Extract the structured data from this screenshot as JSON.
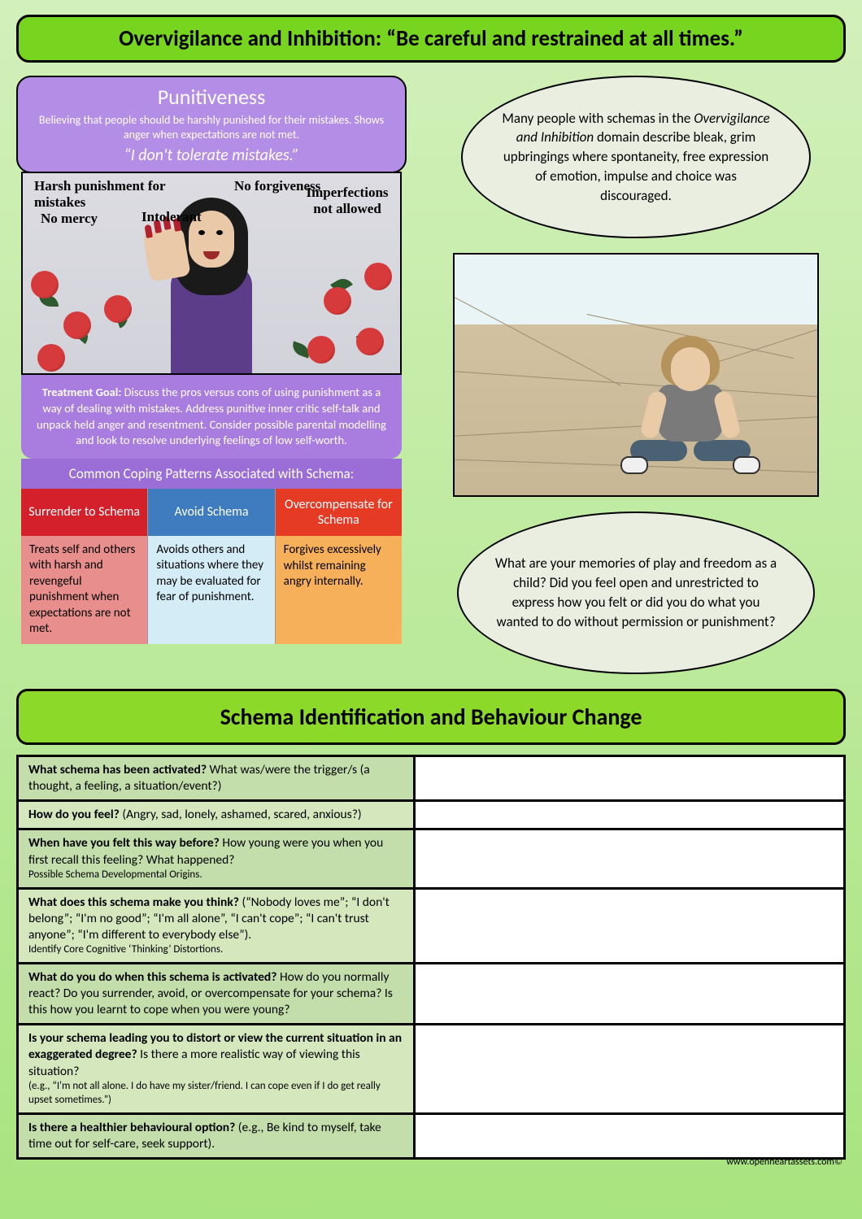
{
  "colors": {
    "title_bg": "#77d41f",
    "purple": "#b48de6",
    "purple_dark": "#a97de0",
    "coping_header_bg": "#9b6dd6",
    "surrender_h": "#d4202a",
    "surrender_b": "#e88f8d",
    "avoid_h": "#3f7bbf",
    "avoid_b": "#d4ecf6",
    "over_h": "#e53a24",
    "over_b": "#f6b05a",
    "ellipse_bg": "#e9eee1",
    "section_bg": "#8cd92a",
    "row_a": "#c3deaa",
    "row_b": "#d4e7bd"
  },
  "title": "Overvigilance and Inhibition: “Be careful and restrained at all times.”",
  "punitive": {
    "title": "Punitiveness",
    "desc": "Believing that people should be harshly punished for their mistakes. Shows anger when expectations are not met.",
    "quote": "“I don't tolerate mistakes.”"
  },
  "illus_labels": {
    "a": "Harsh punishment for mistakes",
    "b": "No forgiveness",
    "c": "Imperfections not allowed",
    "d": "No mercy",
    "e": "Intolerant"
  },
  "treatment": {
    "label": "Treatment Goal:",
    "text": " Discuss the pros versus cons of using punishment as a way of dealing with mistakes. Address punitive inner critic self-talk and unpack held anger and resentment. Consider possible parental modelling and look to resolve underlying feelings of low self-worth."
  },
  "coping": {
    "header": "Common Coping Patterns Associated with Schema:",
    "cols": [
      {
        "h": "Surrender to Schema",
        "b": "Treats self and others with harsh and revengeful punishment when expectations are not met."
      },
      {
        "h": "Avoid Schema",
        "b": "Avoids others and situations where they may be evaluated for fear of punishment."
      },
      {
        "h": "Overcompensate for Schema",
        "b": "Forgives excessively whilst remaining angry internally."
      }
    ]
  },
  "ellipse1": {
    "pre": "Many people with schemas in the ",
    "em": "Overvigilance and Inhibition",
    "post": " domain describe bleak, grim upbringings where spontaneity, free expression of emotion, impulse and choice was discouraged."
  },
  "ellipse2": "What are your memories of play and freedom as a child? Did you feel open and unrestricted to express how you felt or did you do what you wanted to do without permission or punishment?",
  "section2": "Schema Identification and Behaviour Change",
  "questions": [
    {
      "bold": "What schema has been activated?",
      "rest": " What was/were the trigger/s (a thought, a feeling, a situation/event?)",
      "sub": ""
    },
    {
      "bold": "How do you feel?",
      "rest": " (Angry, sad, lonely, ashamed, scared, anxious?)",
      "sub": ""
    },
    {
      "bold": "When have you felt this way before?",
      "rest": " How young were you when you first recall this feeling? What happened?",
      "sub": "Possible Schema Developmental Origins."
    },
    {
      "bold": "What does this schema make you think?",
      "rest": " (“Nobody loves me”; “I don't belong”; “I'm no good”; “I'm all alone”, “I can't cope”; “I can't trust anyone”; “I'm different to everybody else”).",
      "sub": "Identify Core Cognitive ‘Thinking’ Distortions."
    },
    {
      "bold": "What do you do when this schema is activated?",
      "rest": " How do you normally react? Do you surrender, avoid, or overcompensate for your schema? Is this how you learnt to cope when you were young?",
      "sub": ""
    },
    {
      "bold": "Is your schema leading you to distort or view the current situation in an exaggerated degree?",
      "rest": " Is there a more realistic way of viewing this situation? ",
      "sub": "(e.g., “I'm not all alone. I do have my sister/friend. I can cope even if I do get really upset sometimes.”)"
    },
    {
      "bold": "Is there a healthier behavioural option?",
      "rest": " (e.g., Be kind to myself, take time out for self-care, seek support).",
      "sub": ""
    }
  ],
  "footer": "www.openheartassets.com©"
}
